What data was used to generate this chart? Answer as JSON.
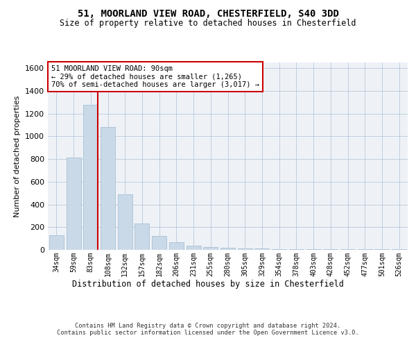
{
  "title1": "51, MOORLAND VIEW ROAD, CHESTERFIELD, S40 3DD",
  "title2": "Size of property relative to detached houses in Chesterfield",
  "xlabel": "Distribution of detached houses by size in Chesterfield",
  "ylabel": "Number of detached properties",
  "categories": [
    "34sqm",
    "59sqm",
    "83sqm",
    "108sqm",
    "132sqm",
    "157sqm",
    "182sqm",
    "206sqm",
    "231sqm",
    "255sqm",
    "280sqm",
    "305sqm",
    "329sqm",
    "354sqm",
    "378sqm",
    "403sqm",
    "428sqm",
    "452sqm",
    "477sqm",
    "501sqm",
    "526sqm"
  ],
  "values": [
    130,
    810,
    1280,
    1080,
    490,
    235,
    120,
    65,
    35,
    25,
    18,
    15,
    10,
    8,
    5,
    5,
    5,
    5,
    5,
    5,
    5
  ],
  "bar_color": "#c9d9e8",
  "bar_edge_color": "#afc4d8",
  "ylim": [
    0,
    1650
  ],
  "yticks": [
    0,
    200,
    400,
    600,
    800,
    1000,
    1200,
    1400,
    1600
  ],
  "vline_color": "#cc0000",
  "annotation_text": "51 MOORLAND VIEW ROAD: 90sqm\n← 29% of detached houses are smaller (1,265)\n70% of semi-detached houses are larger (3,017) →",
  "annotation_box_color": "#ffffff",
  "annotation_box_edge": "#cc0000",
  "footnote": "Contains HM Land Registry data © Crown copyright and database right 2024.\nContains public sector information licensed under the Open Government Licence v3.0.",
  "plot_bg_color": "#eef2f7"
}
